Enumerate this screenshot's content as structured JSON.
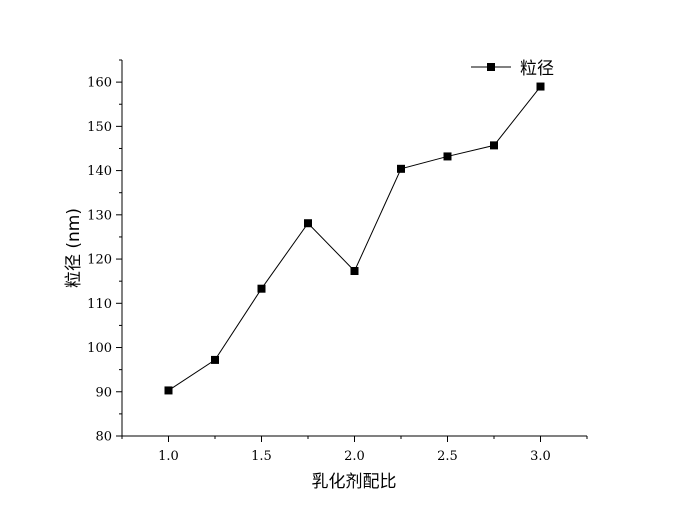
{
  "chart_data": {
    "type": "line",
    "xlabel": "乳化剂配比",
    "ylabel": "粒径 (nm)",
    "xlim": [
      0.75,
      3.25
    ],
    "ylim": [
      80,
      165
    ],
    "xticks": [
      1.0,
      1.5,
      2.0,
      2.5,
      3.0
    ],
    "xtick_labels": [
      "1.0",
      "1.5",
      "2.0",
      "2.5",
      "3.0"
    ],
    "yticks": [
      80,
      90,
      100,
      110,
      120,
      130,
      140,
      150,
      160
    ],
    "ytick_labels": [
      "80",
      "90",
      "100",
      "110",
      "120",
      "130",
      "140",
      "150",
      "160"
    ],
    "grid": false,
    "legend_position": "top-right",
    "series": [
      {
        "name": "粒径",
        "marker": "square",
        "color": "#000000",
        "x": [
          1.0,
          1.25,
          1.5,
          1.75,
          2.0,
          2.25,
          2.5,
          2.75,
          3.0
        ],
        "y": [
          90.3,
          97.2,
          113.3,
          128.1,
          117.3,
          140.4,
          143.2,
          145.7,
          159.0
        ]
      }
    ]
  }
}
